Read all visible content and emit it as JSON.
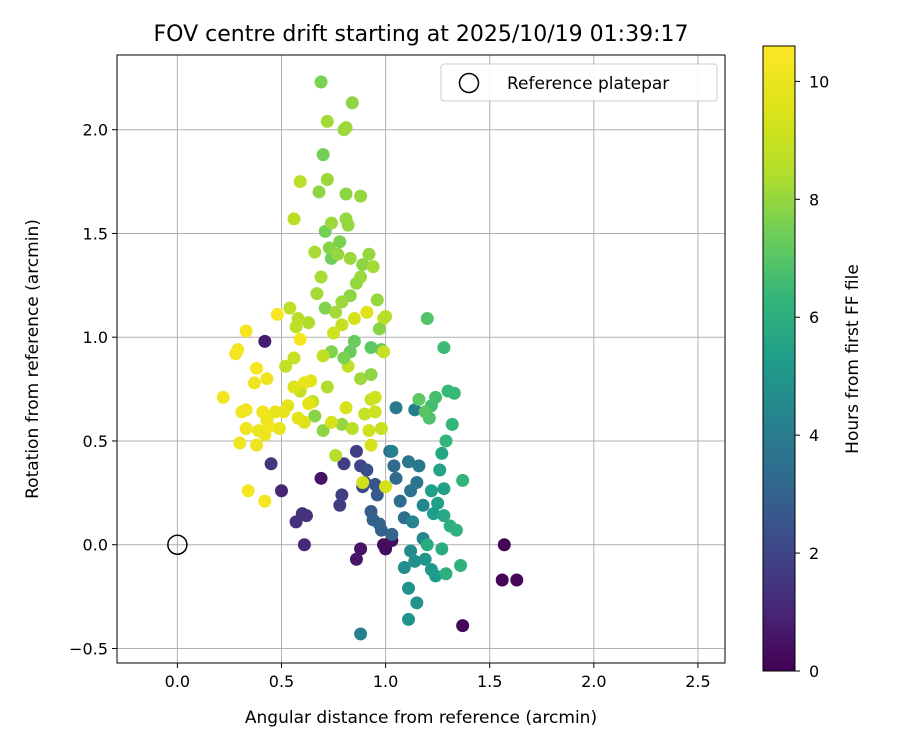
{
  "chart_data": {
    "type": "scatter",
    "title": "FOV centre drift starting at 2025/10/19 01:39:17",
    "xlabel": "Angular distance from reference (arcmin)",
    "ylabel": "Rotation from reference (arcmin)",
    "xlim": [
      -0.29,
      2.63
    ],
    "ylim": [
      -0.57,
      2.36
    ],
    "xticks": [
      0.0,
      0.5,
      1.0,
      1.5,
      2.0,
      2.5
    ],
    "yticks": [
      -0.5,
      0.0,
      0.5,
      1.0,
      1.5,
      2.0
    ],
    "xtick_labels": [
      "0.0",
      "0.5",
      "1.0",
      "1.5",
      "2.0",
      "2.5"
    ],
    "ytick_labels": [
      "−0.5",
      "0.0",
      "0.5",
      "1.0",
      "1.5",
      "2.0"
    ],
    "grid": true,
    "legend": {
      "position": "top-right",
      "entries": [
        "Reference platepar"
      ]
    },
    "reference_point": {
      "x": 0.0,
      "y": 0.0
    },
    "colorbar": {
      "label": "Hours from first FF file",
      "range": [
        0,
        10.6
      ],
      "ticks": [
        0,
        2,
        4,
        6,
        8,
        10
      ],
      "tick_labels": [
        "0",
        "2",
        "4",
        "6",
        "8",
        "10"
      ],
      "colormap": "viridis"
    },
    "points": [
      [
        1.57,
        0.0,
        0.1
      ],
      [
        1.56,
        -0.17,
        0.1
      ],
      [
        1.63,
        -0.17,
        0.2
      ],
      [
        1.37,
        -0.39,
        0.2
      ],
      [
        0.99,
        0.0,
        0.3
      ],
      [
        1.0,
        -0.02,
        0.3
      ],
      [
        1.03,
        0.02,
        0.4
      ],
      [
        0.88,
        -0.02,
        0.5
      ],
      [
        0.86,
        -0.07,
        0.6
      ],
      [
        0.69,
        0.32,
        0.5
      ],
      [
        0.42,
        0.98,
        0.8
      ],
      [
        0.5,
        0.26,
        1.0
      ],
      [
        0.61,
        0.0,
        1.1
      ],
      [
        0.57,
        0.11,
        1.3
      ],
      [
        0.62,
        0.14,
        1.4
      ],
      [
        0.6,
        0.15,
        1.4
      ],
      [
        0.45,
        0.39,
        1.5
      ],
      [
        0.78,
        0.19,
        1.7
      ],
      [
        0.79,
        0.24,
        1.8
      ],
      [
        0.8,
        0.39,
        1.8
      ],
      [
        0.86,
        0.45,
        1.8
      ],
      [
        0.88,
        0.38,
        2.0
      ],
      [
        0.89,
        0.28,
        2.2
      ],
      [
        0.91,
        0.36,
        2.3
      ],
      [
        0.9,
        0.3,
        2.3
      ],
      [
        0.95,
        0.29,
        2.5
      ],
      [
        0.96,
        0.24,
        2.7
      ],
      [
        0.93,
        0.16,
        2.8
      ],
      [
        0.94,
        0.12,
        2.9
      ],
      [
        0.97,
        0.1,
        3.0
      ],
      [
        0.98,
        0.07,
        3.0
      ],
      [
        1.03,
        0.05,
        3.1
      ],
      [
        1.02,
        0.45,
        3.2
      ],
      [
        1.04,
        0.38,
        3.3
      ],
      [
        1.05,
        0.32,
        3.3
      ],
      [
        1.07,
        0.21,
        3.4
      ],
      [
        1.09,
        0.13,
        3.5
      ],
      [
        1.12,
        0.26,
        3.6
      ],
      [
        1.15,
        0.3,
        3.7
      ],
      [
        1.16,
        0.38,
        3.8
      ],
      [
        1.11,
        0.4,
        3.8
      ],
      [
        1.05,
        0.66,
        3.9
      ],
      [
        0.88,
        -0.43,
        4.1
      ],
      [
        1.14,
        0.65,
        4.1
      ],
      [
        1.03,
        0.45,
        4.2
      ],
      [
        1.13,
        0.11,
        4.3
      ],
      [
        1.18,
        0.19,
        4.4
      ],
      [
        1.18,
        0.03,
        4.5
      ],
      [
        1.12,
        -0.03,
        4.6
      ],
      [
        1.14,
        -0.08,
        4.7
      ],
      [
        1.09,
        -0.11,
        4.7
      ],
      [
        1.11,
        -0.21,
        4.8
      ],
      [
        1.15,
        -0.28,
        4.9
      ],
      [
        1.11,
        -0.36,
        4.9
      ],
      [
        1.19,
        -0.07,
        5.0
      ],
      [
        1.22,
        -0.12,
        5.1
      ],
      [
        1.24,
        -0.15,
        5.2
      ],
      [
        1.23,
        0.15,
        5.3
      ],
      [
        1.22,
        0.26,
        5.3
      ],
      [
        1.25,
        0.2,
        5.4
      ],
      [
        1.28,
        0.27,
        5.4
      ],
      [
        1.26,
        0.36,
        5.5
      ],
      [
        1.27,
        0.44,
        5.6
      ],
      [
        1.28,
        0.14,
        5.7
      ],
      [
        1.2,
        0.0,
        5.8
      ],
      [
        1.27,
        -0.02,
        5.9
      ],
      [
        1.29,
        -0.14,
        6.0
      ],
      [
        1.31,
        0.09,
        6.0
      ],
      [
        1.34,
        0.07,
        6.1
      ],
      [
        1.36,
        -0.1,
        6.1
      ],
      [
        1.37,
        0.31,
        6.2
      ],
      [
        1.29,
        0.5,
        6.3
      ],
      [
        1.32,
        0.58,
        6.3
      ],
      [
        1.3,
        0.74,
        6.4
      ],
      [
        1.33,
        0.73,
        6.4
      ],
      [
        1.28,
        0.95,
        6.5
      ],
      [
        1.22,
        0.67,
        6.6
      ],
      [
        1.24,
        0.71,
        6.7
      ],
      [
        1.21,
        0.61,
        6.8
      ],
      [
        1.2,
        1.09,
        6.9
      ],
      [
        1.19,
        0.64,
        7.0
      ],
      [
        1.16,
        0.7,
        7.1
      ],
      [
        0.93,
        0.95,
        7.1
      ],
      [
        0.98,
        0.94,
        7.2
      ],
      [
        0.83,
        0.93,
        7.3
      ],
      [
        0.74,
        1.38,
        7.4
      ],
      [
        0.71,
        1.51,
        7.5
      ],
      [
        0.7,
        1.88,
        7.5
      ],
      [
        0.69,
        2.23,
        7.6
      ],
      [
        0.78,
        1.46,
        7.6
      ],
      [
        0.71,
        1.14,
        7.7
      ],
      [
        0.74,
        0.93,
        7.7
      ],
      [
        0.66,
        0.62,
        7.8
      ],
      [
        0.7,
        0.55,
        7.9
      ],
      [
        0.79,
        0.58,
        8.0
      ],
      [
        0.81,
        1.57,
        8.0
      ],
      [
        0.81,
        2.01,
        8.1
      ],
      [
        0.8,
        2.0,
        8.1
      ],
      [
        0.72,
        2.04,
        8.2
      ],
      [
        0.84,
        2.13,
        7.9
      ],
      [
        0.88,
        1.68,
        8.0
      ],
      [
        0.81,
        1.69,
        7.9
      ],
      [
        0.72,
        1.76,
        8.1
      ],
      [
        0.68,
        1.7,
        7.9
      ],
      [
        0.82,
        1.54,
        8.0
      ],
      [
        0.74,
        1.55,
        8.1
      ],
      [
        0.73,
        1.43,
        7.8
      ],
      [
        0.77,
        1.4,
        8.0
      ],
      [
        0.83,
        1.38,
        8.1
      ],
      [
        0.89,
        1.35,
        7.9
      ],
      [
        0.92,
        1.4,
        8.0
      ],
      [
        0.94,
        1.34,
        8.2
      ],
      [
        0.88,
        1.29,
        8.1
      ],
      [
        0.86,
        1.26,
        8.0
      ],
      [
        0.83,
        1.2,
        7.9
      ],
      [
        0.79,
        1.17,
        8.1
      ],
      [
        0.76,
        1.12,
        8.2
      ],
      [
        0.69,
        1.29,
        8.3
      ],
      [
        0.66,
        1.41,
        8.3
      ],
      [
        0.67,
        1.21,
        8.2
      ],
      [
        0.63,
        1.07,
        8.4
      ],
      [
        0.58,
        1.09,
        8.5
      ],
      [
        0.56,
        1.57,
        8.6
      ],
      [
        0.59,
        1.75,
        8.6
      ],
      [
        0.54,
        1.14,
        8.7
      ],
      [
        0.57,
        1.05,
        8.7
      ],
      [
        0.52,
        0.86,
        8.8
      ],
      [
        0.56,
        0.9,
        8.9
      ],
      [
        0.59,
        0.74,
        8.9
      ],
      [
        0.65,
        0.69,
        8.9
      ],
      [
        0.7,
        0.91,
        8.8
      ],
      [
        0.79,
        1.06,
        8.9
      ],
      [
        0.82,
        0.86,
        8.8
      ],
      [
        0.9,
        0.63,
        8.9
      ],
      [
        0.93,
        0.7,
        9.0
      ],
      [
        0.99,
        1.09,
        9.1
      ],
      [
        0.95,
        0.64,
        9.1
      ],
      [
        0.99,
        0.93,
        9.0
      ],
      [
        0.92,
        0.55,
        9.2
      ],
      [
        0.89,
        0.3,
        9.2
      ],
      [
        1.0,
        0.28,
        9.3
      ],
      [
        0.93,
        0.48,
        9.4
      ],
      [
        0.81,
        0.66,
        9.4
      ],
      [
        0.74,
        0.59,
        9.4
      ],
      [
        0.61,
        0.59,
        9.5
      ],
      [
        0.56,
        0.76,
        9.6
      ],
      [
        0.53,
        0.67,
        9.7
      ],
      [
        0.61,
        0.78,
        9.8
      ],
      [
        0.64,
        0.79,
        9.8
      ],
      [
        0.63,
        0.68,
        9.8
      ],
      [
        0.58,
        0.61,
        9.8
      ],
      [
        0.51,
        0.64,
        9.9
      ],
      [
        0.47,
        0.64,
        9.9
      ],
      [
        0.49,
        0.56,
        9.9
      ],
      [
        0.43,
        0.6,
        10.0
      ],
      [
        0.42,
        0.53,
        10.0
      ],
      [
        0.39,
        0.55,
        10.0
      ],
      [
        0.38,
        0.48,
        10.1
      ],
      [
        0.33,
        0.56,
        10.1
      ],
      [
        0.33,
        0.65,
        10.2
      ],
      [
        0.31,
        0.64,
        10.2
      ],
      [
        0.41,
        0.64,
        10.2
      ],
      [
        0.44,
        0.57,
        10.2
      ],
      [
        0.37,
        0.78,
        10.2
      ],
      [
        0.43,
        0.8,
        10.1
      ],
      [
        0.3,
        0.49,
        10.2
      ],
      [
        0.34,
        0.26,
        10.3
      ],
      [
        0.42,
        0.21,
        10.3
      ],
      [
        0.22,
        0.71,
        10.2
      ],
      [
        0.28,
        0.92,
        10.3
      ],
      [
        0.29,
        0.94,
        10.3
      ],
      [
        0.33,
        1.03,
        10.3
      ],
      [
        0.38,
        0.85,
        10.4
      ],
      [
        0.59,
        0.99,
        10.3
      ],
      [
        0.48,
        1.11,
        10.4
      ],
      [
        0.95,
        0.71,
        9.2
      ],
      [
        0.98,
        0.56,
        9.0
      ],
      [
        0.84,
        0.56,
        8.6
      ],
      [
        0.76,
        0.43,
        8.5
      ],
      [
        0.72,
        0.76,
        8.4
      ],
      [
        0.88,
        0.8,
        8.1
      ],
      [
        0.93,
        0.82,
        7.9
      ],
      [
        0.96,
        1.18,
        8.0
      ],
      [
        0.97,
        1.04,
        7.8
      ],
      [
        1.0,
        1.1,
        8.5
      ],
      [
        0.85,
        1.09,
        9.3
      ],
      [
        0.91,
        1.12,
        9.6
      ],
      [
        0.75,
        1.02,
        9.1
      ],
      [
        0.8,
        0.9,
        7.6
      ],
      [
        0.85,
        0.98,
        7.3
      ]
    ]
  }
}
